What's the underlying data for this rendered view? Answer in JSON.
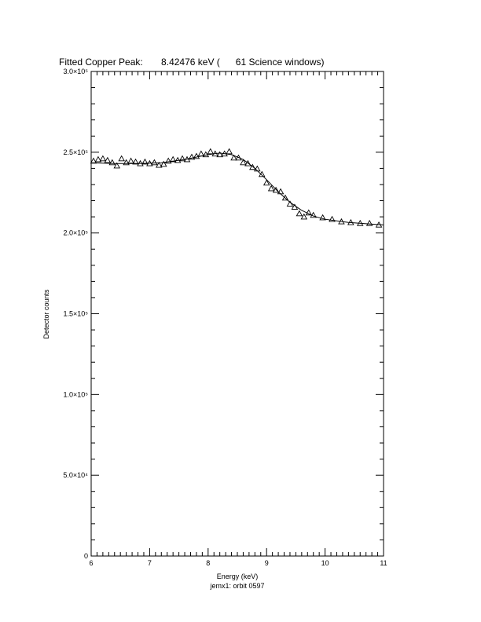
{
  "chart_data": {
    "type": "scatter",
    "title": "Fitted Copper Peak:       8.42476 keV (      61 Science windows)",
    "x_label": "Energy (keV)",
    "subtitle": "jemx1: orbit 0597",
    "y_label": "Detector counts",
    "xlim": [
      6,
      11
    ],
    "xticks": [
      6,
      7,
      8,
      9,
      10,
      11
    ],
    "x_minor_ticks": 10,
    "ylim": [
      0,
      300000
    ],
    "yticks": [
      0,
      {
        "value": 50000,
        "label": "5.0×10⁴"
      },
      {
        "value": 100000,
        "label": "1.0×10⁵"
      },
      {
        "value": 150000,
        "label": "1.5×10⁵"
      },
      {
        "value": 200000,
        "label": "2.0×10⁵"
      },
      {
        "value": 250000,
        "label": "2.5×10⁵"
      },
      {
        "value": 300000,
        "label": "3.0×10⁵"
      }
    ],
    "y_minor_ticks": 5,
    "series": [
      {
        "marker": "triangle",
        "color": "#000000",
        "x": [
          6.04,
          6.12,
          6.2,
          6.28,
          6.36,
          6.44,
          6.52,
          6.6,
          6.68,
          6.76,
          6.84,
          6.92,
          7.0,
          7.08,
          7.16,
          7.24,
          7.32,
          7.4,
          7.48,
          7.56,
          7.64,
          7.72,
          7.8,
          7.88,
          7.96,
          8.04,
          8.12,
          8.2,
          8.28,
          8.36,
          8.44,
          8.52,
          8.6,
          8.68,
          8.76,
          8.84,
          8.92,
          9.0,
          9.08,
          9.16,
          9.24,
          9.32,
          9.4,
          9.48,
          9.56,
          9.64,
          9.72,
          9.8,
          9.96,
          10.12,
          10.28,
          10.44,
          10.6,
          10.76,
          10.92
        ],
        "values": [
          244600,
          245500,
          246000,
          245000,
          243600,
          241600,
          246000,
          243600,
          244600,
          244000,
          243000,
          244000,
          243000,
          243600,
          242000,
          242600,
          244600,
          245500,
          245000,
          246000,
          245500,
          247000,
          247500,
          249000,
          248500,
          250400,
          249000,
          248500,
          249000,
          250400,
          246500,
          246500,
          243600,
          243000,
          240700,
          239700,
          236300,
          231000,
          227500,
          226500,
          225600,
          221700,
          218000,
          216000,
          212000,
          210000,
          212500,
          211000,
          209500,
          208500,
          207000,
          206500,
          206000,
          206000,
          205000
        ]
      },
      {
        "marker": "line",
        "color": "#000000",
        "x": [
          6.0,
          6.4,
          6.8,
          7.2,
          7.6,
          8.0,
          8.2,
          8.4,
          8.6,
          8.8,
          9.0,
          9.2,
          9.4,
          9.6,
          9.8,
          10.0,
          10.4,
          10.8,
          11.0
        ],
        "values": [
          243500,
          243000,
          243000,
          243500,
          245500,
          248500,
          249500,
          248500,
          245500,
          240000,
          233000,
          225500,
          219000,
          214000,
          210500,
          208500,
          206500,
          205500,
          205000
        ]
      }
    ]
  }
}
